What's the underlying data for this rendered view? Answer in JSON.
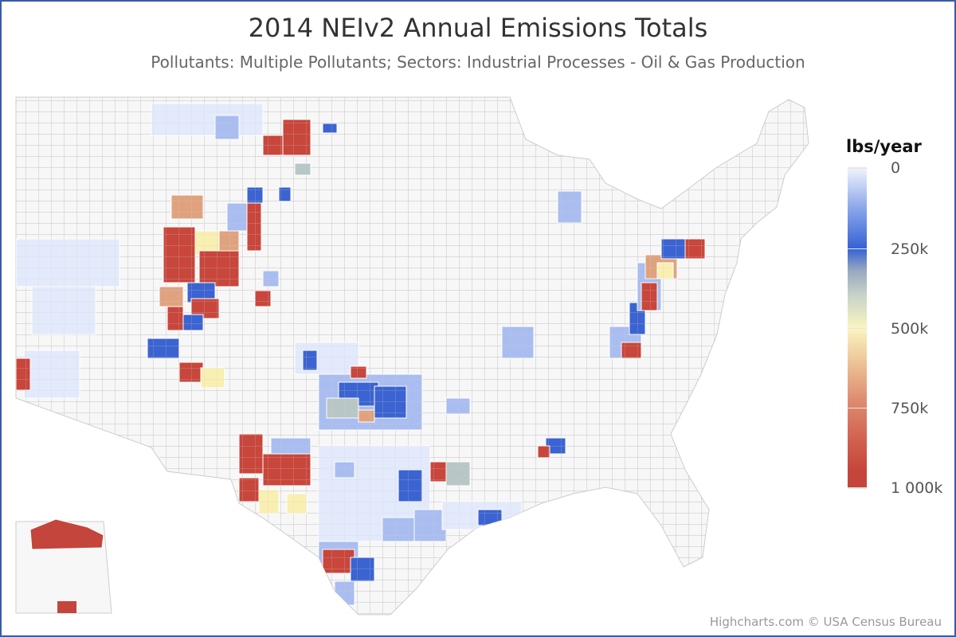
{
  "title": "2014 NEIv2 Annual Emissions Totals",
  "subtitle": "Pollutants: Multiple Pollutants; Sectors: Industrial Processes - Oil & Gas Production",
  "legend": {
    "title": "lbs/year",
    "labels": [
      "0",
      "250k",
      "500k",
      "750k",
      "1 000k"
    ],
    "min": 0,
    "max": 1000000,
    "color_stops": [
      "#eef2fc",
      "#3562d4",
      "#f9f5c2",
      "#df8e72",
      "#c4453b"
    ]
  },
  "credits": "Highcharts.com © USA Census Bureau",
  "chart_data": {
    "type": "map",
    "title": "2014 NEIv2 Annual Emissions Totals",
    "subtitle": "Pollutants: Multiple Pollutants; Sectors: Industrial Processes - Oil & Gas Production",
    "color_axis": {
      "min": 0,
      "max": 1000000,
      "unit": "lbs/year",
      "ticks": [
        0,
        250000,
        500000,
        750000,
        1000000
      ]
    },
    "legend_placement": "right"
  }
}
